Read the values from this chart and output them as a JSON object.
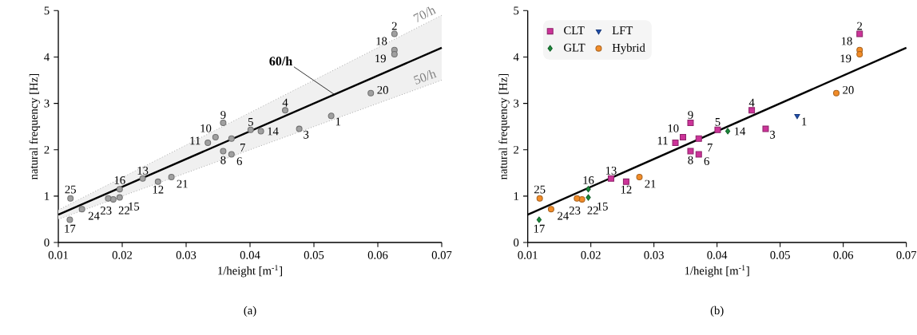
{
  "chart_data": [
    {
      "type": "scatter",
      "title": "(a)",
      "xlabel": "1/height [m$^{-1}$]",
      "ylabel": "natural frequency [Hz]",
      "xlim": [
        0.01,
        0.07
      ],
      "ylim": [
        0,
        5
      ],
      "xticks": [
        0.01,
        0.02,
        0.03,
        0.04,
        0.05,
        0.06,
        0.07
      ],
      "yticks": [
        0,
        1,
        2,
        3,
        4,
        5
      ],
      "series": [
        {
          "color": "#a0a0a0",
          "marker": "circle",
          "x": [
            0.0527,
            0.0626,
            0.0477,
            0.0455,
            0.0401,
            0.0371,
            0.0371,
            0.0358,
            0.0358,
            0.0346,
            0.0334,
            0.0256,
            0.0232,
            0.0417,
            0.0196,
            0.0196,
            0.0118,
            0.0626,
            0.0626,
            0.0589,
            0.0277,
            0.0186,
            0.0178,
            0.0137,
            0.0119
          ],
          "values": [
            2.73,
            4.5,
            2.45,
            2.85,
            2.43,
            1.9,
            2.24,
            1.97,
            2.58,
            2.27,
            2.15,
            1.31,
            1.38,
            2.4,
            0.97,
            1.15,
            0.49,
            4.15,
            4.06,
            3.22,
            1.41,
            0.93,
            0.95,
            0.72,
            0.95
          ]
        },
        {
          "type": "line",
          "name": "60/h",
          "color": "#000000",
          "line_style": "solid",
          "x": [
            0.01,
            0.07
          ],
          "values": [
            0.6,
            4.2
          ],
          "lower": [
            0.5,
            3.5
          ],
          "upper": [
            0.7,
            4.9
          ]
        },
        {
          "type": "line",
          "name": "70/h",
          "color": "#808080",
          "line_style": "dotted",
          "x": [
            0.01,
            0.07
          ],
          "values": [
            0.7,
            4.9
          ]
        },
        {
          "type": "line",
          "name": "50/h",
          "color": "#808080",
          "line_style": "dotted",
          "x": [
            0.01,
            0.07
          ],
          "values": [
            0.5,
            3.5
          ]
        }
      ],
      "annotations": [
        {
          "text": "1",
          "x": 0.0527,
          "y": 2.73
        },
        {
          "text": "2",
          "x": 0.0626,
          "y": 4.5
        },
        {
          "text": "3",
          "x": 0.0477,
          "y": 2.45
        },
        {
          "text": "4",
          "x": 0.0455,
          "y": 2.85
        },
        {
          "text": "5",
          "x": 0.0401,
          "y": 2.43
        },
        {
          "text": "6",
          "x": 0.0371,
          "y": 1.9
        },
        {
          "text": "7",
          "x": 0.0371,
          "y": 2.24
        },
        {
          "text": "8",
          "x": 0.0358,
          "y": 1.97
        },
        {
          "text": "9",
          "x": 0.0358,
          "y": 2.58
        },
        {
          "text": "10",
          "x": 0.0346,
          "y": 2.27
        },
        {
          "text": "11",
          "x": 0.0334,
          "y": 2.15
        },
        {
          "text": "12",
          "x": 0.0256,
          "y": 1.31
        },
        {
          "text": "13",
          "x": 0.0232,
          "y": 1.38
        },
        {
          "text": "14",
          "x": 0.0417,
          "y": 2.4
        },
        {
          "text": "15",
          "x": 0.0196,
          "y": 0.97
        },
        {
          "text": "16",
          "x": 0.0196,
          "y": 1.15
        },
        {
          "text": "17",
          "x": 0.0118,
          "y": 0.49
        },
        {
          "text": "18",
          "x": 0.0626,
          "y": 4.15
        },
        {
          "text": "19",
          "x": 0.0626,
          "y": 4.06
        },
        {
          "text": "20",
          "x": 0.0589,
          "y": 3.22
        },
        {
          "text": "21",
          "x": 0.0277,
          "y": 1.41
        },
        {
          "text": "22",
          "x": 0.0186,
          "y": 0.93
        },
        {
          "text": "23",
          "x": 0.0178,
          "y": 0.95
        },
        {
          "text": "24",
          "x": 0.0137,
          "y": 0.72
        },
        {
          "text": "25",
          "x": 0.0119,
          "y": 0.95
        }
      ]
    },
    {
      "type": "scatter",
      "title": "(b)",
      "xlabel": "1/height [m$^{-1}$]",
      "ylabel": "natural frequency [Hz]",
      "xlim": [
        0.01,
        0.07
      ],
      "ylim": [
        0,
        5
      ],
      "xticks": [
        0.01,
        0.02,
        0.03,
        0.04,
        0.05,
        0.06,
        0.07
      ],
      "yticks": [
        0,
        1,
        2,
        3,
        4,
        5
      ],
      "legend": "top left",
      "series": [
        {
          "name": "CLT",
          "color": "#cc3399",
          "marker": "square",
          "x": [
            0.0626,
            0.0477,
            0.0455,
            0.0401,
            0.0371,
            0.0371,
            0.0358,
            0.0358,
            0.0346,
            0.0334,
            0.0256,
            0.0232
          ],
          "values": [
            4.5,
            2.45,
            2.85,
            2.43,
            1.9,
            2.24,
            1.97,
            2.58,
            2.27,
            2.15,
            1.31,
            1.38
          ]
        },
        {
          "name": "LFT",
          "color": "#2050b0",
          "marker": "triangle",
          "x": [
            0.0527
          ],
          "values": [
            2.73
          ]
        },
        {
          "name": "GLT",
          "color": "#1a8a3a",
          "marker": "diamond",
          "x": [
            0.0417,
            0.0196,
            0.0196,
            0.0118
          ],
          "values": [
            2.4,
            0.97,
            1.15,
            0.49
          ]
        },
        {
          "name": "Hybrid",
          "color": "#f28c28",
          "marker": "circle",
          "x": [
            0.0626,
            0.0626,
            0.0589,
            0.0277,
            0.0186,
            0.0178,
            0.0137,
            0.0119
          ],
          "values": [
            4.15,
            4.06,
            3.22,
            1.41,
            0.93,
            0.95,
            0.72,
            0.95
          ]
        },
        {
          "type": "line",
          "color": "#000000",
          "line_style": "solid",
          "x": [
            0.01,
            0.07
          ],
          "values": [
            0.6,
            4.2
          ]
        }
      ],
      "annotations": [
        {
          "text": "1",
          "x": 0.0527,
          "y": 2.73
        },
        {
          "text": "2",
          "x": 0.0626,
          "y": 4.5
        },
        {
          "text": "3",
          "x": 0.0477,
          "y": 2.45
        },
        {
          "text": "4",
          "x": 0.0455,
          "y": 2.85
        },
        {
          "text": "5",
          "x": 0.0401,
          "y": 2.43
        },
        {
          "text": "6",
          "x": 0.0371,
          "y": 1.9
        },
        {
          "text": "7",
          "x": 0.0371,
          "y": 2.24
        },
        {
          "text": "8",
          "x": 0.0358,
          "y": 1.97
        },
        {
          "text": "9",
          "x": 0.0358,
          "y": 2.58
        },
        {
          "text": "10",
          "x": 0.0346,
          "y": 2.27
        },
        {
          "text": "11",
          "x": 0.0334,
          "y": 2.15
        },
        {
          "text": "12",
          "x": 0.0256,
          "y": 1.31
        },
        {
          "text": "13",
          "x": 0.0232,
          "y": 1.38
        },
        {
          "text": "14",
          "x": 0.0417,
          "y": 2.4
        },
        {
          "text": "15",
          "x": 0.0196,
          "y": 0.97
        },
        {
          "text": "16",
          "x": 0.0196,
          "y": 1.15
        },
        {
          "text": "17",
          "x": 0.0118,
          "y": 0.49
        },
        {
          "text": "18",
          "x": 0.0626,
          "y": 4.15
        },
        {
          "text": "19",
          "x": 0.0626,
          "y": 4.06
        },
        {
          "text": "20",
          "x": 0.0589,
          "y": 3.22
        },
        {
          "text": "21",
          "x": 0.0277,
          "y": 1.41
        },
        {
          "text": "22",
          "x": 0.0186,
          "y": 0.93
        },
        {
          "text": "23",
          "x": 0.0178,
          "y": 0.95
        },
        {
          "text": "24",
          "x": 0.0137,
          "y": 0.72
        },
        {
          "text": "25",
          "x": 0.0119,
          "y": 0.95
        }
      ]
    }
  ]
}
